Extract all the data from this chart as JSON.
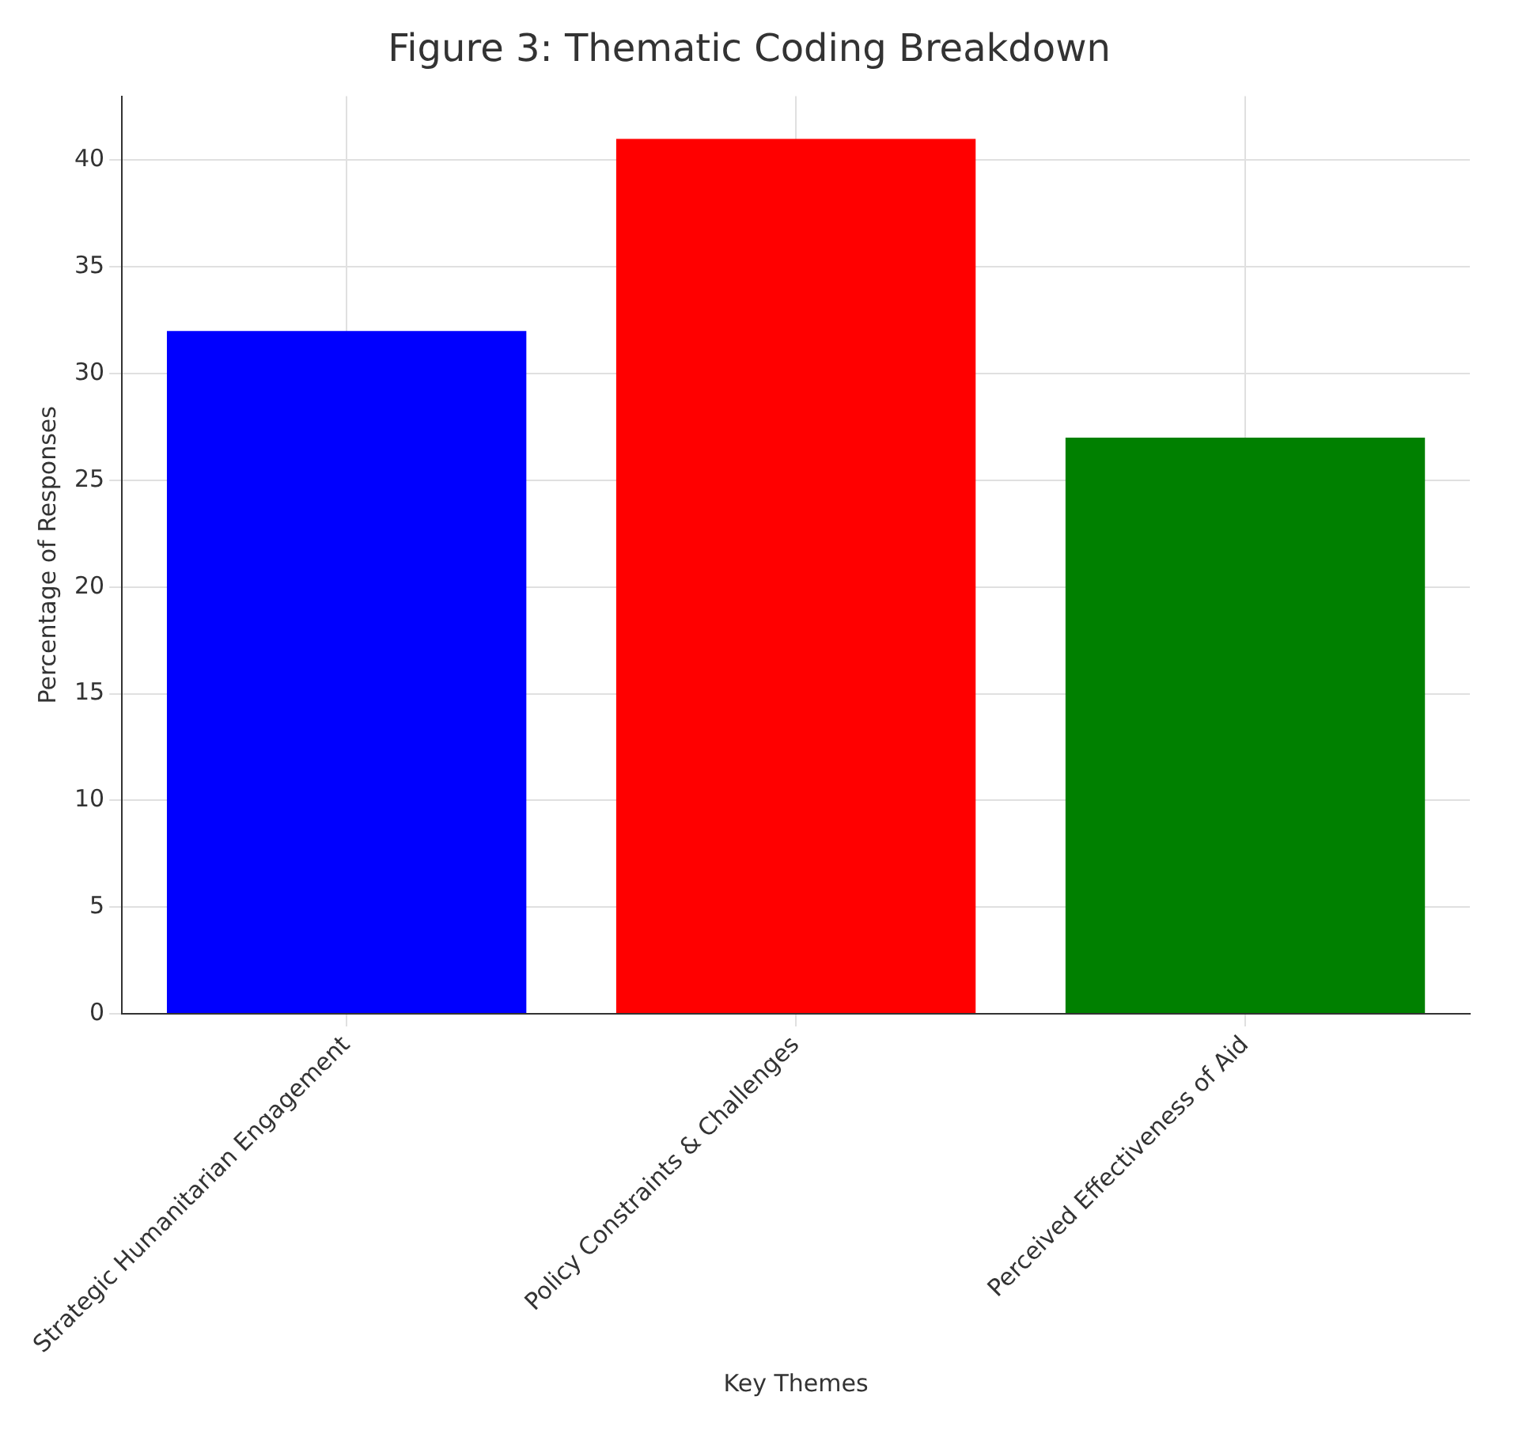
{
  "chart_data": {
    "type": "bar",
    "title": "Figure 3: Thematic Coding Breakdown",
    "xlabel": "Key Themes",
    "ylabel": "Percentage of Responses",
    "categories": [
      "Strategic Humanitarian Engagement",
      "Policy Constraints & Challenges",
      "Perceived Effectiveness of Aid"
    ],
    "values": [
      32,
      41,
      27
    ],
    "colors": [
      "#0000ff",
      "#ff0000",
      "#008000"
    ],
    "ylim": [
      0,
      43
    ],
    "yticks": [
      0,
      5,
      10,
      15,
      20,
      25,
      30,
      35,
      40
    ],
    "grid": true
  }
}
